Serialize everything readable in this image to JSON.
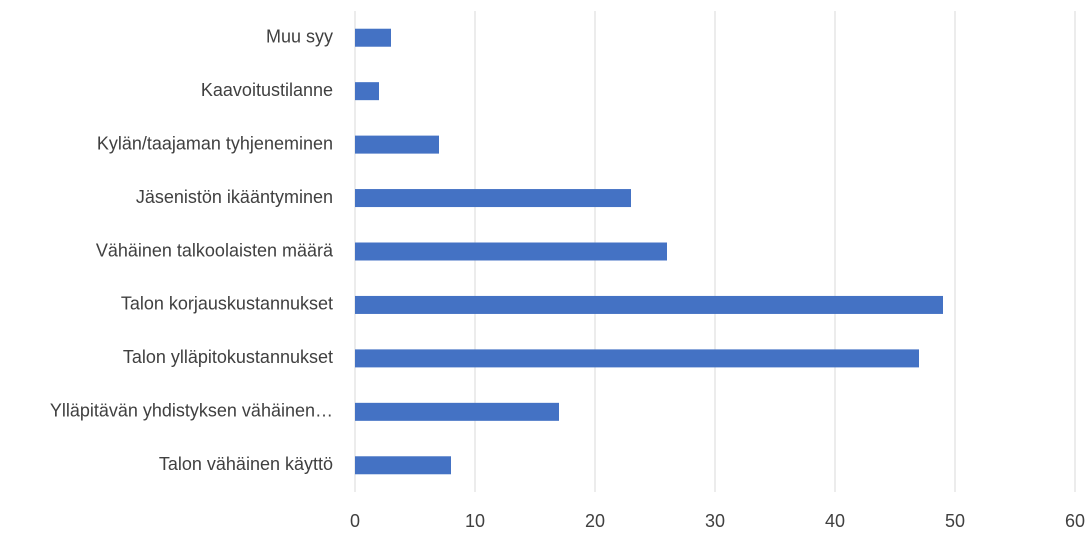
{
  "chart_data": {
    "type": "hbar",
    "categories": [
      "Muu syy",
      "Kaavoitustilanne",
      "Kylän/taajaman tyhjeneminen",
      "Jäsenistön ikääntyminen",
      "Vähäinen talkoolaisten määrä",
      "Talon korjauskustannukset",
      "Talon ylläpitokustannukset",
      "Ylläpitävän yhdistyksen vähäinen…",
      "Talon vähäinen käyttö"
    ],
    "values": [
      3,
      2,
      7,
      23,
      26,
      49,
      47,
      17,
      8
    ],
    "color": "#4472c4",
    "xlim": [
      0,
      60
    ],
    "xticks": [
      0,
      10,
      20,
      30,
      40,
      50,
      60
    ],
    "grid": true
  }
}
